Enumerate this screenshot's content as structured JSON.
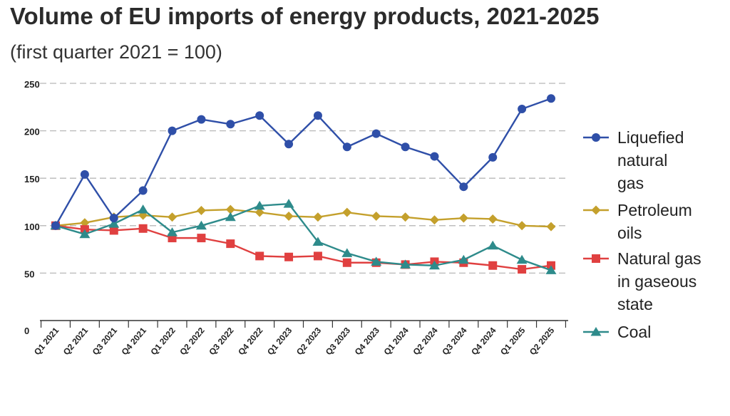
{
  "header": {
    "title": "Volume of EU imports of energy products, 2021-2025",
    "subtitle": "(first quarter 2021 = 100)"
  },
  "chart_data": {
    "type": "line",
    "title": "Volume of EU imports of energy products, 2021-2025",
    "subtitle": "(first quarter 2021 = 100)",
    "xlabel": "",
    "ylabel": "",
    "ylim": [
      0,
      250
    ],
    "yticks": [
      "0",
      "50",
      "100",
      "150",
      "200",
      "250"
    ],
    "grid": "horizontal dashed",
    "legend_position": "right",
    "categories": [
      "Q1 2021",
      "Q2 2021",
      "Q3 2021",
      "Q4 2021",
      "Q1 2022",
      "Q2 2022",
      "Q3 2022",
      "Q4 2022",
      "Q1 2023",
      "Q2 2023",
      "Q3 2023",
      "Q4 2023",
      "Q1 2024",
      "Q2 2024",
      "Q3 2024",
      "Q4 2024",
      "Q1 2025",
      "Q2 2025"
    ],
    "series": [
      {
        "name": "Liquefied natural gas",
        "legend_lines": [
          "Liquefied",
          "natural",
          "gas"
        ],
        "color": "#2f4fa8",
        "marker": "circle",
        "values": [
          100,
          154,
          108,
          137,
          200,
          212,
          207,
          216,
          186,
          216,
          183,
          197,
          183,
          173,
          141,
          172,
          223,
          234
        ]
      },
      {
        "name": "Petroleum oils",
        "legend_lines": [
          "Petroleum",
          "oils"
        ],
        "color": "#c4a02c",
        "marker": "diamond",
        "values": [
          100,
          103,
          109,
          111,
          109,
          116,
          117,
          114,
          110,
          109,
          114,
          110,
          109,
          106,
          108,
          107,
          100,
          99
        ]
      },
      {
        "name": "Natural gas in gaseous state",
        "legend_lines": [
          "Natural gas",
          "in gaseous",
          "state"
        ],
        "color": "#e04040",
        "marker": "square",
        "values": [
          100,
          96,
          95,
          97,
          87,
          87,
          81,
          68,
          67,
          68,
          61,
          61,
          59,
          62,
          61,
          58,
          54,
          58
        ]
      },
      {
        "name": "Coal",
        "legend_lines": [
          "Coal"
        ],
        "color": "#2e8b8b",
        "marker": "triangle",
        "values": [
          100,
          91,
          102,
          117,
          93,
          100,
          109,
          121,
          123,
          83,
          71,
          62,
          59,
          58,
          64,
          79,
          64,
          53
        ]
      }
    ]
  }
}
